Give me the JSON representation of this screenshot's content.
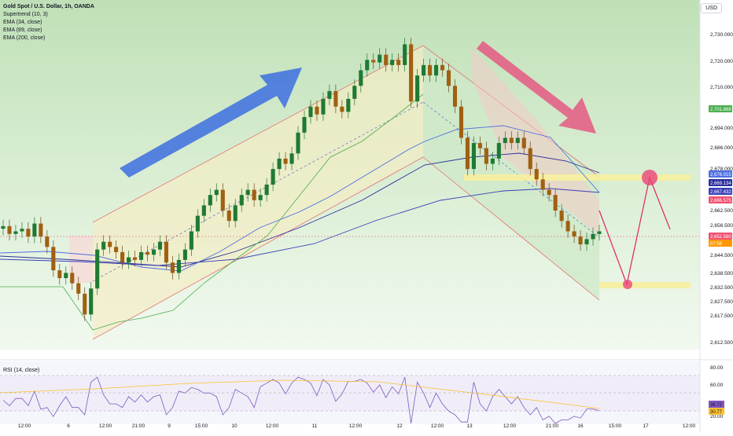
{
  "legend": {
    "symbol": "Gold Spot / U.S. Dollar, 1h, OANDA",
    "supertrend": "Supertrend (10, 3)",
    "ema34": "EMA (34, close)",
    "ema89": "EMA (89, close)",
    "ema200": "EMA (200, close)"
  },
  "currency_button": "USD",
  "rsi_legend": "RSI (14, close)",
  "colors": {
    "up": "#26a69a",
    "down": "#a26420",
    "candle_up_body": "#1e7a33",
    "candle_down_body": "#a06010",
    "blue_arrow": "#3d6ee0",
    "red_arrow": "#e8457a",
    "channel_green": "#cfe8c8",
    "channel_yellow": "#f4ecc4",
    "highlight_yellow": "#f7ef9e",
    "rsi_line": "#7e57c2",
    "ema34": "#4f6fe0",
    "ema89": "#2a2f9c",
    "ema200": "#3a3fb8"
  },
  "chart_data": {
    "type": "candlestick",
    "y_axis_ticks": [
      "2,730.000",
      "2,720.000",
      "2,710.000",
      "2,694.000",
      "2,686.000",
      "2,678.000",
      "2,662.500",
      "2,656.500",
      "2,644.500",
      "2,638.500",
      "2,632.500",
      "2,627.500",
      "2,617.500",
      "2,612.500"
    ],
    "ylim": [
      2608,
      2735
    ],
    "x_axis_ticks": [
      "12:00",
      "6",
      "12:00",
      "21:00",
      "9",
      "15:00",
      "10",
      "12:00",
      "11",
      "12:00",
      "12",
      "12:00",
      "13",
      "12:00",
      "21:00",
      "16",
      "15:00",
      "17",
      "12:00"
    ],
    "price_labels": [
      {
        "text": "2,701.868",
        "color": "#4caf50"
      },
      {
        "text": "2,676.015",
        "color": "#4f6fe0"
      },
      {
        "text": "2,669.134",
        "color": "#2a2f9c"
      },
      {
        "text": "2,667.432",
        "color": "#3a3fb8"
      },
      {
        "text": "2,666.575",
        "color": "#f05070"
      },
      {
        "text": "2,652.580",
        "color": "#f05070"
      },
      {
        "text": "07:59",
        "color": "#ff9800"
      }
    ],
    "close_series": [
      2654,
      2651,
      2652,
      2653,
      2650,
      2655,
      2650,
      2646,
      2637,
      2634,
      2636,
      2632,
      2628,
      2620,
      2630,
      2645,
      2648,
      2646,
      2644,
      2640,
      2642,
      2641,
      2644,
      2643,
      2645,
      2648,
      2640,
      2636,
      2641,
      2645,
      2652,
      2658,
      2662,
      2666,
      2668,
      2660,
      2656,
      2662,
      2666,
      2668,
      2664,
      2666,
      2670,
      2676,
      2680,
      2678,
      2682,
      2690,
      2696,
      2700,
      2697,
      2703,
      2706,
      2700,
      2698,
      2703,
      2708,
      2714,
      2718,
      2717,
      2720,
      2716,
      2718,
      2716,
      2724,
      2702,
      2712,
      2716,
      2712,
      2716,
      2714,
      2708,
      2700,
      2688,
      2676,
      2686,
      2684,
      2678,
      2680,
      2686,
      2688,
      2686,
      2688,
      2684,
      2676,
      2672,
      2668,
      2666,
      2660,
      2656,
      2652,
      2650,
      2647,
      2649,
      2651,
      2652
    ],
    "rsi": {
      "levels": [
        "80.00",
        "60.00",
        "20.00"
      ],
      "current": [
        "36.72",
        "30.77"
      ]
    }
  }
}
